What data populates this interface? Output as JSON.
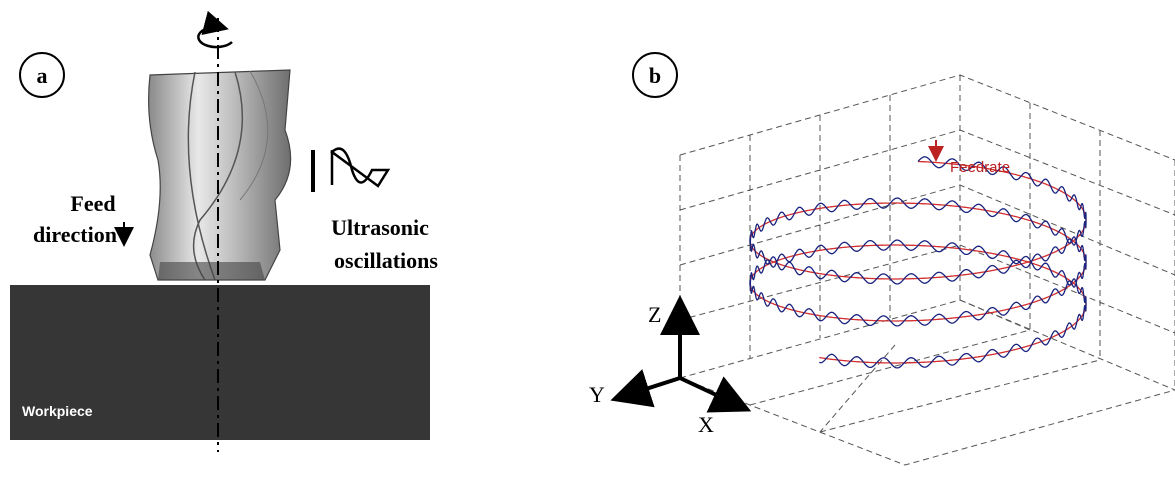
{
  "panel_a": {
    "label": "a",
    "feed": "Feed",
    "direction": "direction",
    "ultrasonic": "Ultrasonic",
    "oscillations": "oscillations",
    "workpiece": "Workpiece"
  },
  "panel_b": {
    "label": "b",
    "feedrate": "Feedrate",
    "axis_z": "Z",
    "axis_y": "Y",
    "axis_x": "X"
  }
}
